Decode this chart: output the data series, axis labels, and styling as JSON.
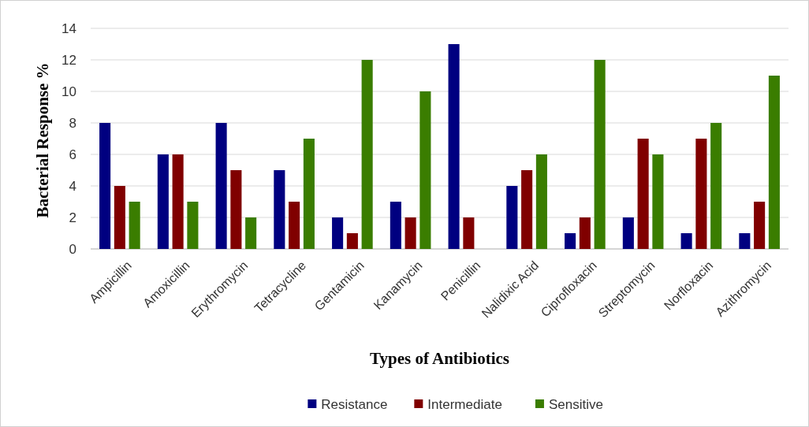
{
  "chart_data": {
    "type": "bar",
    "xlabel": "Types of Antibiotics",
    "ylabel": "Bacterial Response %",
    "categories": [
      "Ampicillin",
      "Amoxicillin",
      "Erythromycin",
      "Tetracycline",
      "Gentamicin",
      "Kanamycin",
      "Penicillin",
      "Nalidixic Acid",
      "Ciprofloxacin",
      "Streptomycin",
      "Norfloxacin",
      "Azithromycin"
    ],
    "series": [
      {
        "name": "Resistance",
        "color": "#000080",
        "values": [
          8,
          6,
          8,
          5,
          2,
          3,
          13,
          4,
          1,
          2,
          1,
          1
        ]
      },
      {
        "name": "Intermediate",
        "color": "#800000",
        "values": [
          4,
          6,
          5,
          3,
          1,
          2,
          2,
          5,
          2,
          7,
          7,
          3
        ]
      },
      {
        "name": "Sensitive",
        "color": "#3a7d00",
        "values": [
          3,
          3,
          2,
          7,
          12,
          10,
          0,
          6,
          12,
          6,
          8,
          11
        ]
      }
    ],
    "ylim": [
      0,
      14
    ],
    "yticks": [
      0,
      2,
      4,
      6,
      8,
      10,
      12,
      14
    ],
    "grid": "y",
    "legend": "bottom"
  }
}
